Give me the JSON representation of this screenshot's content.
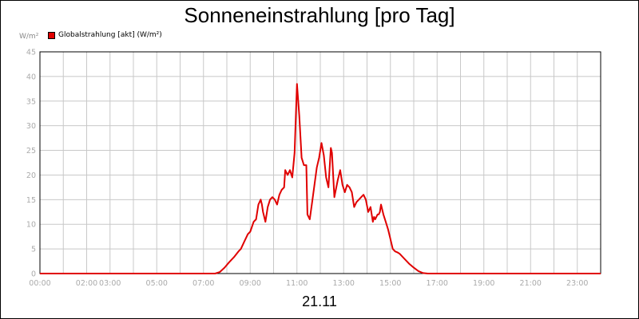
{
  "chart_data": {
    "type": "line",
    "title": "Sonneneinstrahlung [pro Tag]",
    "ylabel": "W/m²",
    "xlabel": "21.11",
    "ylim": [
      0,
      45
    ],
    "y_ticks": [
      "0",
      "5",
      "10",
      "15",
      "20",
      "25",
      "30",
      "35",
      "40",
      "45"
    ],
    "x_ticks": [
      "00:00",
      "02:00",
      "03:00",
      "05:00",
      "07:00",
      "09:00",
      "11:00",
      "13:00",
      "15:00",
      "17:00",
      "19:00",
      "21:00",
      "23:00"
    ],
    "x_tick_positions": [
      0,
      2,
      3,
      5,
      7,
      9,
      11,
      13,
      15,
      17,
      19,
      21,
      23
    ],
    "xlim": [
      0,
      24
    ],
    "grid": true,
    "legend_position": "top-left",
    "series": [
      {
        "name": "Globalstrahlung [akt] (W/m²)",
        "color": "#e00000",
        "x": [
          0,
          7.5,
          7.7,
          7.9,
          8.1,
          8.3,
          8.5,
          8.6,
          8.75,
          8.9,
          9.0,
          9.15,
          9.25,
          9.35,
          9.45,
          9.5,
          9.55,
          9.65,
          9.75,
          9.85,
          9.95,
          10.05,
          10.15,
          10.25,
          10.35,
          10.45,
          10.5,
          10.6,
          10.7,
          10.8,
          10.9,
          11.0,
          11.1,
          11.2,
          11.3,
          11.4,
          11.45,
          11.55,
          11.65,
          11.75,
          11.85,
          11.95,
          12.05,
          12.15,
          12.25,
          12.35,
          12.45,
          12.5,
          12.6,
          12.75,
          12.85,
          12.95,
          13.05,
          13.15,
          13.25,
          13.35,
          13.45,
          13.55,
          13.65,
          13.75,
          13.85,
          13.95,
          14.05,
          14.15,
          14.25,
          14.3,
          14.35,
          14.45,
          14.5,
          14.55,
          14.6,
          14.7,
          14.8,
          14.9,
          15.0,
          15.1,
          15.2,
          15.3,
          15.4,
          15.6,
          15.8,
          16.0,
          16.2,
          16.4,
          16.6,
          16.8,
          17.0,
          24
        ],
        "values": [
          0,
          0,
          0.3,
          1.2,
          2.3,
          3.3,
          4.5,
          5.0,
          6.5,
          8.0,
          8.5,
          10.5,
          11.0,
          14.0,
          15.0,
          14.0,
          12.5,
          10.5,
          13.5,
          15.0,
          15.5,
          15.0,
          14.0,
          16.0,
          17.0,
          17.5,
          21.0,
          20.0,
          21.0,
          19.5,
          24.5,
          38.5,
          32.0,
          23.5,
          22.0,
          22.0,
          12.0,
          11.0,
          14.5,
          18.0,
          21.5,
          23.5,
          26.5,
          24.0,
          19.5,
          17.5,
          25.5,
          24.5,
          15.5,
          19.0,
          21.0,
          18.0,
          16.5,
          18.0,
          17.5,
          16.5,
          13.5,
          14.5,
          15.0,
          15.5,
          16.0,
          15.0,
          12.5,
          13.5,
          10.5,
          11.5,
          11.0,
          12.0,
          12.0,
          12.5,
          14.0,
          12.0,
          10.5,
          9.0,
          7.0,
          5.0,
          4.5,
          4.3,
          4.0,
          3.0,
          2.0,
          1.2,
          0.5,
          0.1,
          0,
          0,
          0,
          0
        ]
      }
    ]
  }
}
